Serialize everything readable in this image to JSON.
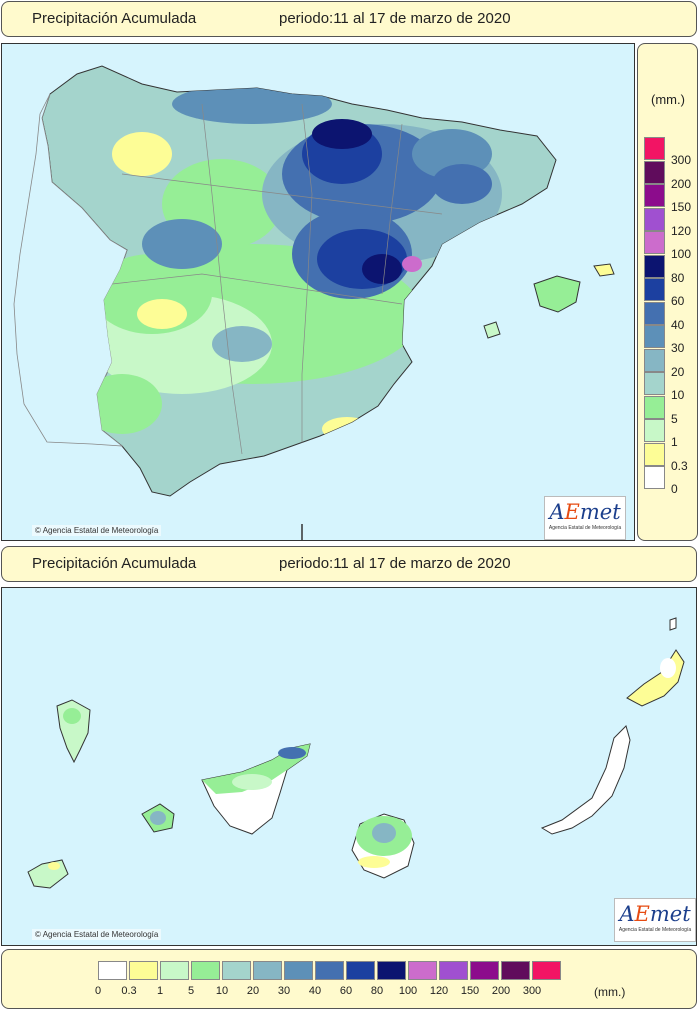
{
  "header_top": {
    "title": "Precipitación Acumulada",
    "period": "periodo:11 al 17 de marzo de 2020"
  },
  "header_bottom": {
    "title": "Precipitación Acumulada",
    "period": "periodo:11 al 17 de marzo de 2020"
  },
  "credit": "Agencia Estatal de Meteorología",
  "logo": {
    "word_a": "A",
    "word_e": "E",
    "word_rest": "met",
    "sub": "Agencia Estatal de Meteorología"
  },
  "unit": "(mm.)",
  "scale": [
    {
      "label": "0",
      "color": "#ffffff"
    },
    {
      "label": "0.3",
      "color": "#fdfd96"
    },
    {
      "label": "1",
      "color": "#c8f8c8"
    },
    {
      "label": "5",
      "color": "#96ee96"
    },
    {
      "label": "10",
      "color": "#a4d4cc"
    },
    {
      "label": "20",
      "color": "#86b6c4"
    },
    {
      "label": "30",
      "color": "#5d90b8"
    },
    {
      "label": "40",
      "color": "#4470b0"
    },
    {
      "label": "60",
      "color": "#1c40a0"
    },
    {
      "label": "80",
      "color": "#0c1470"
    },
    {
      "label": "100",
      "color": "#cc6ccc"
    },
    {
      "label": "120",
      "color": "#a050d0"
    },
    {
      "label": "150",
      "color": "#8c0c8c"
    },
    {
      "label": "200",
      "color": "#600c5c"
    },
    {
      "label": "300",
      "color": "#f21464"
    }
  ],
  "map_colors": {
    "sea": "#d6f4fd",
    "border": "#888888"
  }
}
